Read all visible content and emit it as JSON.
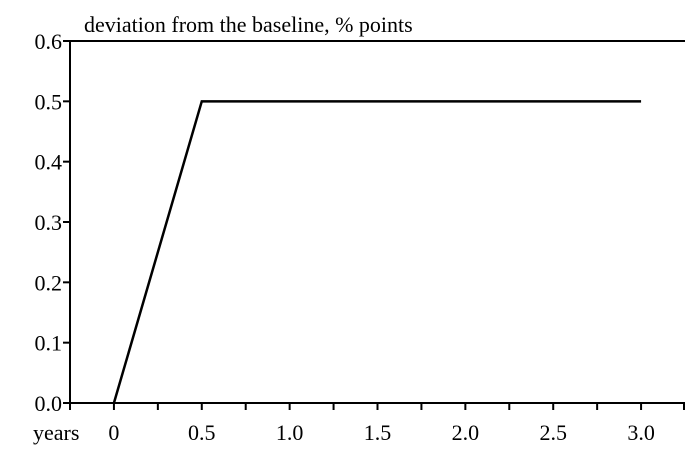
{
  "chart_data": {
    "type": "line",
    "title": "",
    "ylabel": "deviation from the baseline, % points",
    "xlabel": "years",
    "xlim": [
      -0.25,
      3.25
    ],
    "ylim": [
      0,
      0.6
    ],
    "x_ticks": [
      0,
      0.5,
      1.0,
      1.5,
      2.0,
      2.5,
      3.0
    ],
    "x_tick_labels": [
      "0",
      "0.5",
      "1.0",
      "1.5",
      "2.0",
      "2.5",
      "3.0"
    ],
    "y_ticks": [
      0,
      0.1,
      0.2,
      0.3,
      0.4,
      0.5,
      0.6
    ],
    "y_tick_labels": [
      "0.0",
      "0.1",
      "0.2",
      "0.3",
      "0.4",
      "0.5",
      "0.6"
    ],
    "grid": false,
    "legend": "none",
    "series": [
      {
        "x": [
          0,
          0.5,
          3.0
        ],
        "y": [
          0,
          0.5,
          0.5
        ],
        "color": "#000000"
      }
    ]
  }
}
